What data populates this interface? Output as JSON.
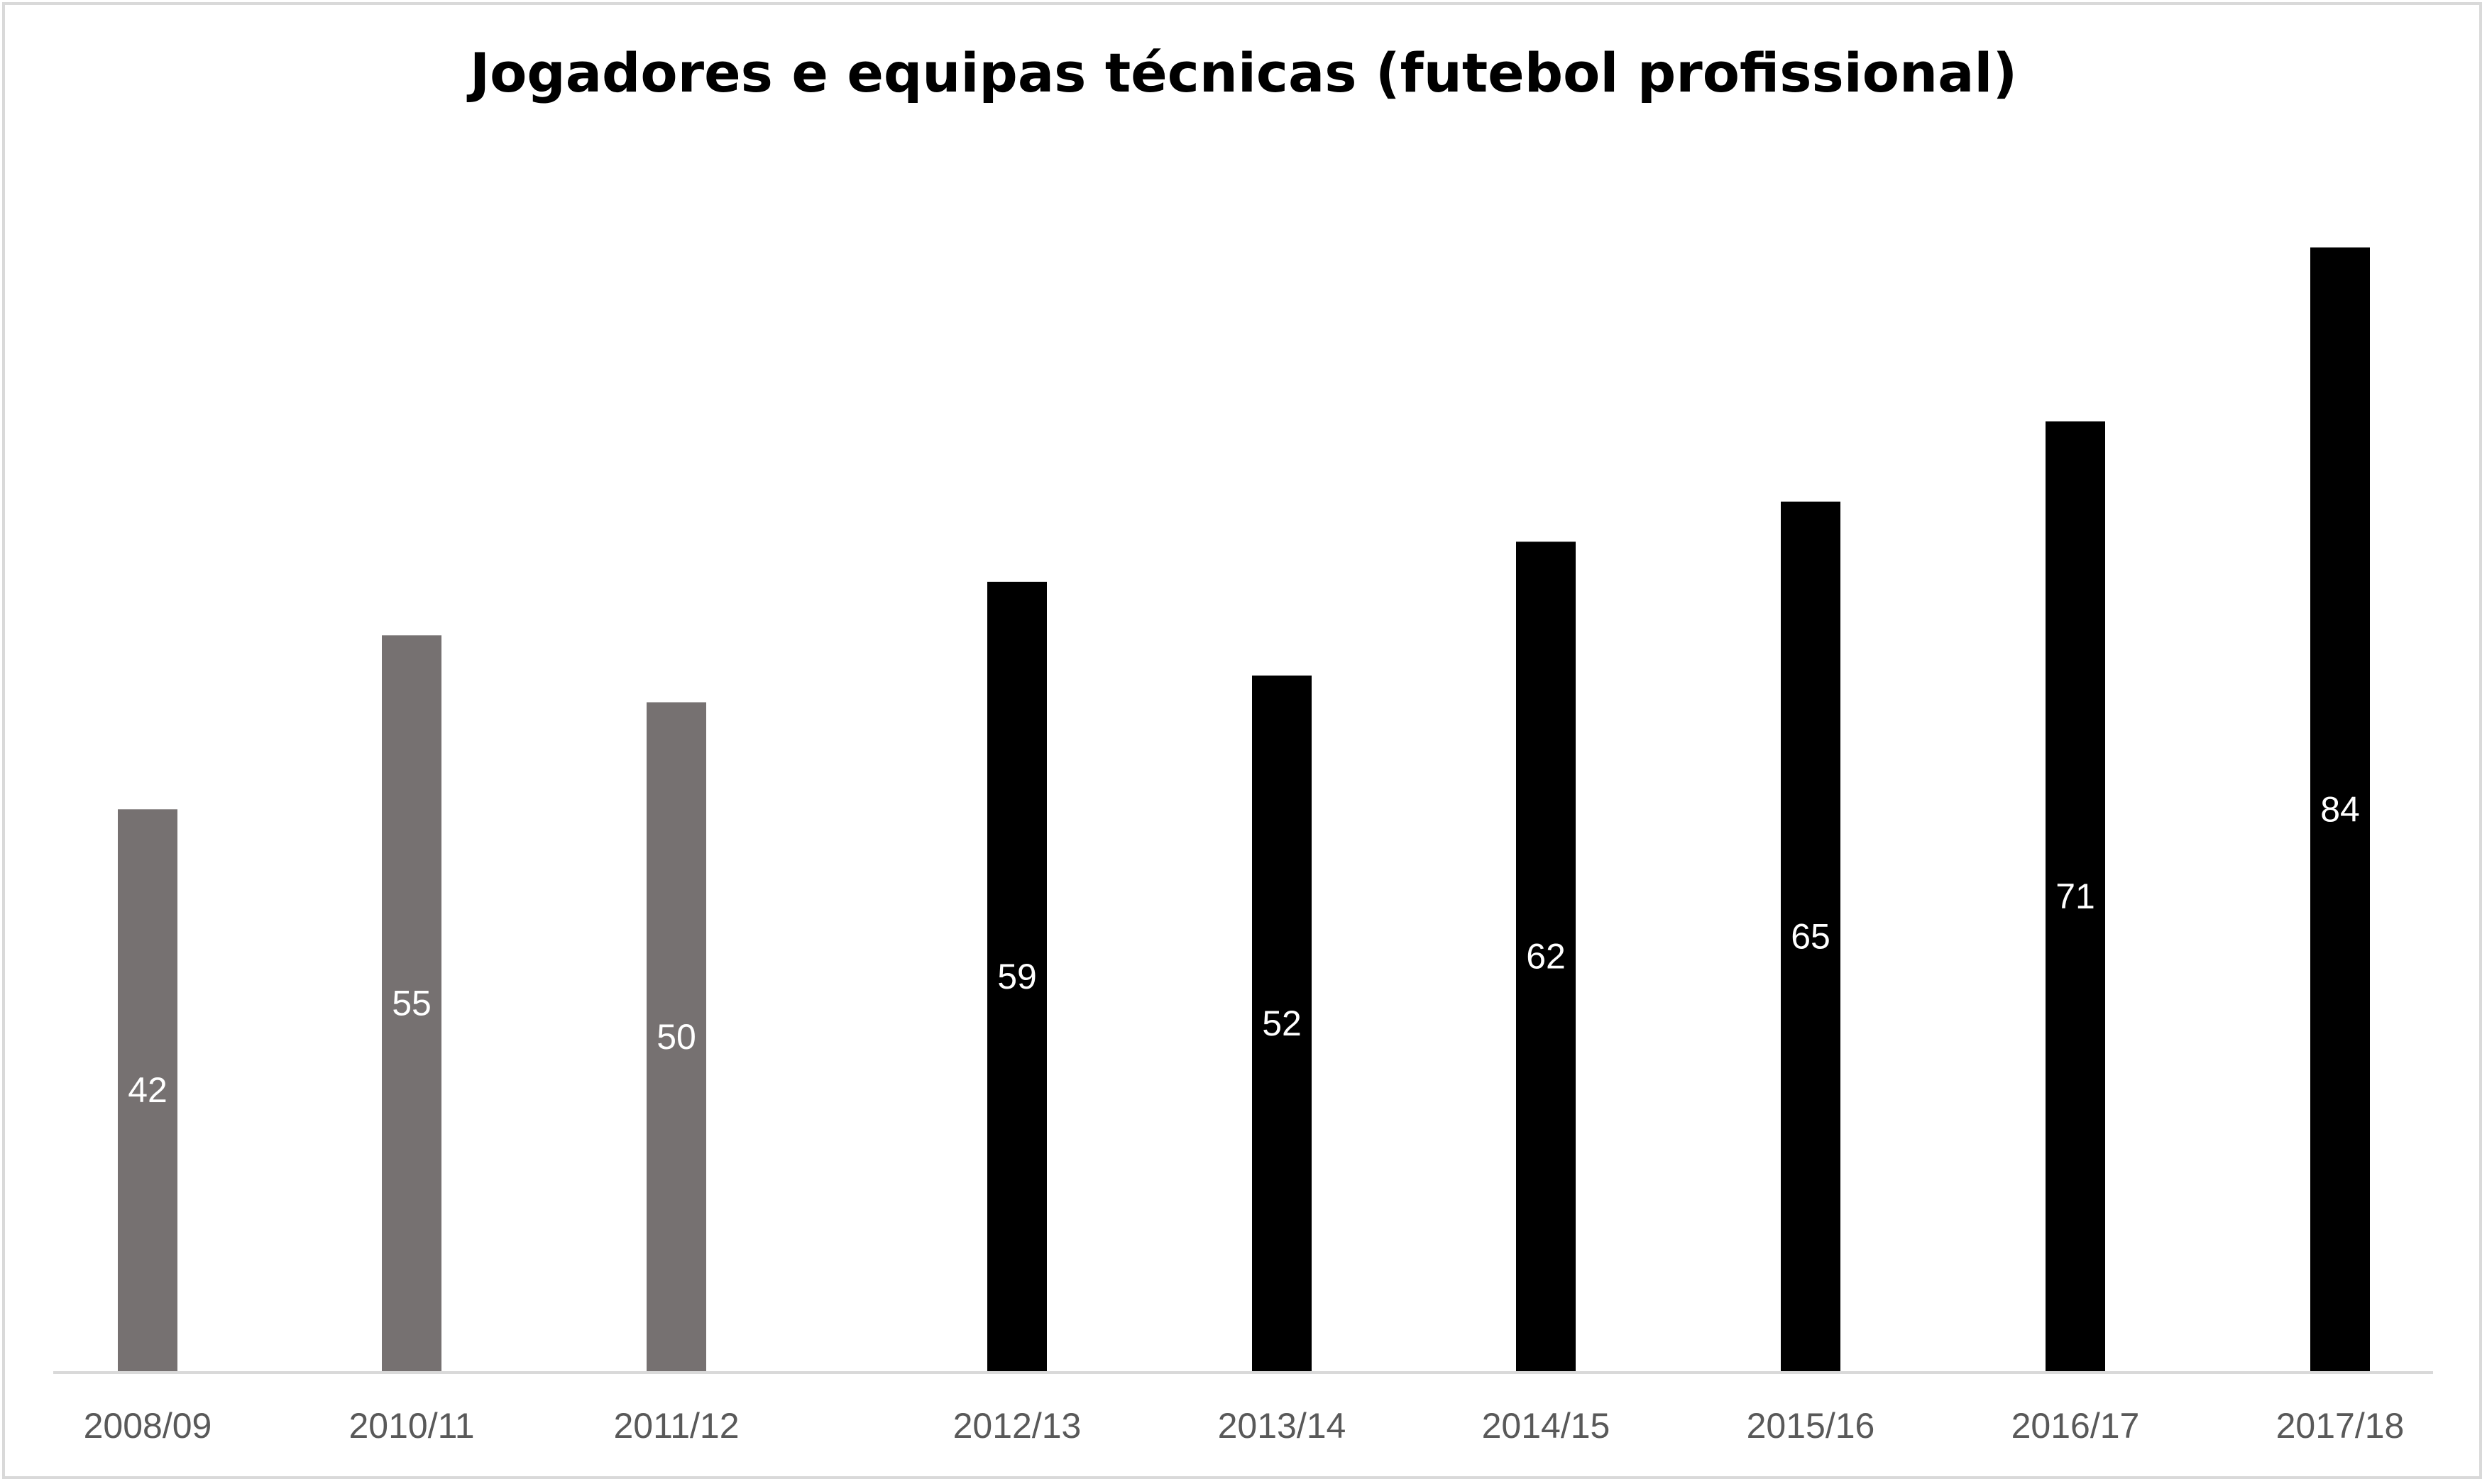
{
  "chart_data": {
    "type": "bar",
    "title": "Jogadores e equipas técnicas (futebol profissional)",
    "xlabel": "",
    "ylabel": "",
    "categories": [
      "2008/09",
      "2010/11",
      "2011/12",
      "2012/13",
      "2013/14",
      "2014/15",
      "2015/16",
      "2016/17",
      "2017/18"
    ],
    "values": [
      42,
      55,
      50,
      59,
      52,
      62,
      65,
      71,
      84
    ],
    "ylim": [
      0,
      90
    ],
    "grid": false,
    "legend": "none",
    "bar_colors": [
      "#767171",
      "#767171",
      "#767171",
      "#000000",
      "#000000",
      "#000000",
      "#000000",
      "#000000",
      "#000000"
    ],
    "axis_color": "#d9d9d9",
    "tick_label_color": "#595959",
    "data_label_color": "#ffffff"
  }
}
